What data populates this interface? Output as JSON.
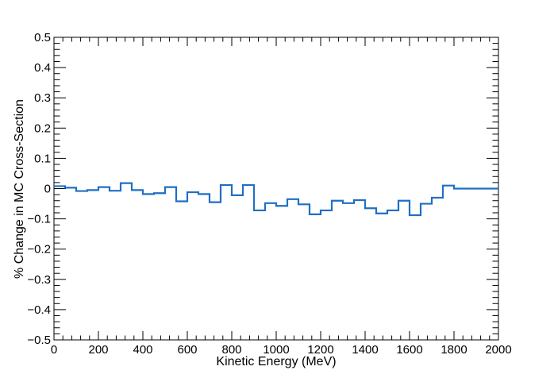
{
  "chart_data": {
    "type": "line",
    "style": "step-histogram",
    "title": "",
    "xlabel": "Kinetic Energy (MeV)",
    "ylabel": "% Change in MC Cross-Section",
    "xlim": [
      0,
      2000
    ],
    "ylim": [
      -0.5,
      0.5
    ],
    "x_ticks": [
      0,
      200,
      400,
      600,
      800,
      1000,
      1200,
      1400,
      1600,
      1800,
      2000
    ],
    "x_tick_labels": [
      "0",
      "200",
      "400",
      "600",
      "800",
      "1000",
      "1200",
      "1400",
      "1600",
      "1800",
      "2000"
    ],
    "y_ticks": [
      -0.5,
      -0.4,
      -0.3,
      -0.2,
      -0.1,
      0,
      0.1,
      0.2,
      0.3,
      0.4,
      0.5
    ],
    "y_tick_labels": [
      "−0.5",
      "−0.4",
      "−0.3",
      "−0.2",
      "−0.1",
      "0",
      "0.1",
      "0.2",
      "0.3",
      "0.4",
      "0.5"
    ],
    "grid": false,
    "legend": "none",
    "line_color": "#1f6fc5",
    "bin_edges": [
      0,
      50,
      100,
      150,
      200,
      250,
      300,
      350,
      400,
      450,
      500,
      550,
      600,
      650,
      700,
      750,
      800,
      850,
      900,
      950,
      1000,
      1050,
      1100,
      1150,
      1200,
      1250,
      1300,
      1350,
      1400,
      1450,
      1500,
      1550,
      1600,
      1650,
      1700,
      1750,
      1800,
      1850,
      1900,
      1950,
      2000
    ],
    "values": [
      0.008,
      0.003,
      -0.008,
      -0.005,
      0.005,
      -0.007,
      0.018,
      -0.005,
      -0.018,
      -0.015,
      0.005,
      -0.042,
      -0.012,
      -0.018,
      -0.045,
      0.012,
      -0.022,
      0.012,
      -0.072,
      -0.048,
      -0.057,
      -0.035,
      -0.052,
      -0.085,
      -0.072,
      -0.04,
      -0.048,
      -0.038,
      -0.065,
      -0.082,
      -0.072,
      -0.04,
      -0.088,
      -0.05,
      -0.03,
      0.01,
      0.0,
      0.0,
      0.0,
      0.0
    ]
  }
}
